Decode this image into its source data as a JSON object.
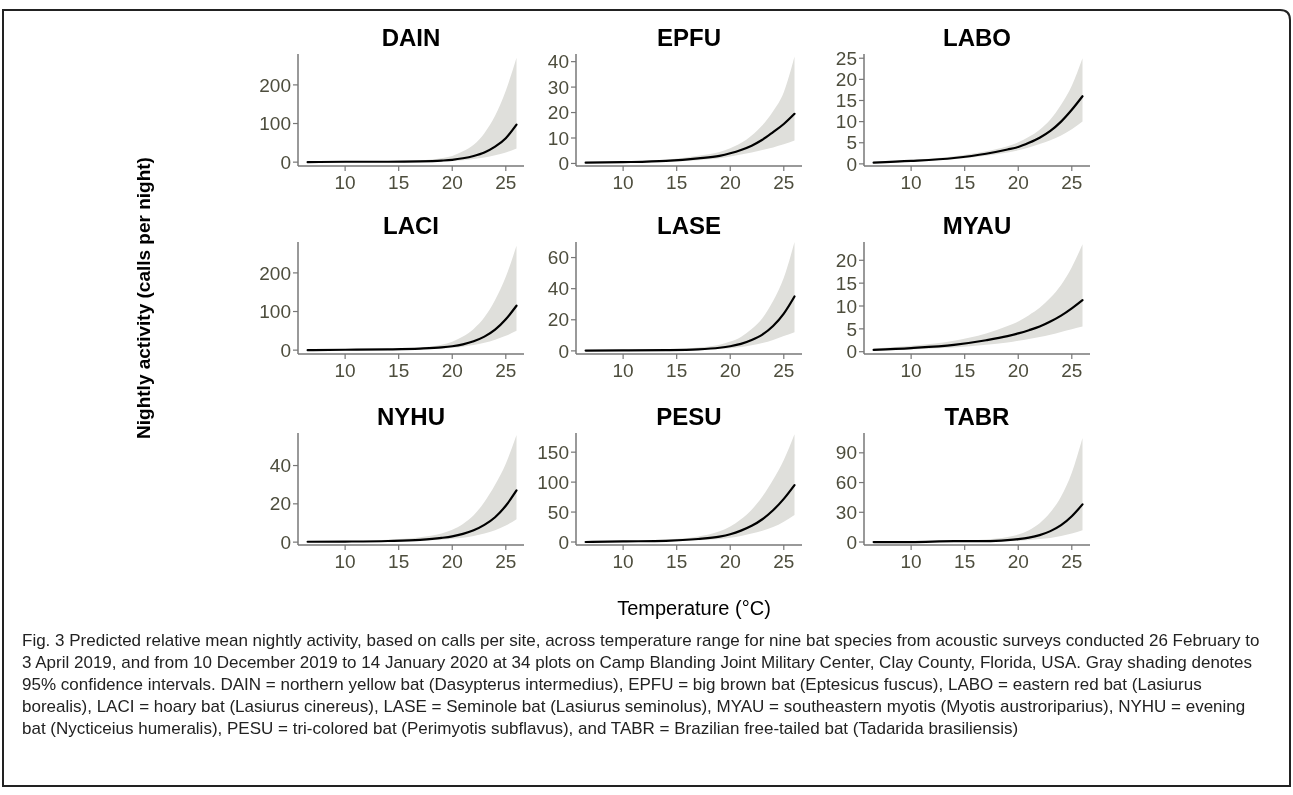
{
  "chart_data": [
    {
      "type": "line",
      "title": "DAIN",
      "x": [
        6.5,
        10,
        14,
        17,
        19,
        20,
        21,
        22,
        23,
        24,
        25,
        26
      ],
      "xlim": [
        5.6,
        26.7
      ],
      "xticks": [
        10,
        15,
        20,
        25
      ],
      "ylim": [
        -10,
        280
      ],
      "yticks": [
        0,
        100,
        200
      ],
      "grid": false,
      "series": [
        {
          "color": "#000000",
          "values": [
            0,
            1,
            1,
            2,
            4,
            6,
            10,
            16,
            25,
            40,
            62,
            97
          ],
          "lower": [
            0,
            0,
            0,
            1,
            2,
            3,
            5,
            8,
            12,
            18,
            25,
            35
          ],
          "upper": [
            1,
            2,
            3,
            5,
            10,
            16,
            28,
            45,
            75,
            120,
            185,
            270
          ]
        }
      ]
    },
    {
      "type": "line",
      "title": "EPFU",
      "x": [
        6.5,
        10,
        14,
        17,
        19,
        20,
        21,
        22,
        23,
        24,
        25,
        26
      ],
      "xlim": [
        5.6,
        26.7
      ],
      "xticks": [
        10,
        15,
        20,
        25
      ],
      "ylim": [
        -1,
        43
      ],
      "yticks": [
        0,
        10,
        20,
        30,
        40
      ],
      "grid": false,
      "series": [
        {
          "color": "#000000",
          "values": [
            0.3,
            0.5,
            1,
            2,
            3,
            4,
            5.3,
            7,
            9.3,
            12.3,
            15.5,
            19.5
          ],
          "lower": [
            0.2,
            0.3,
            0.7,
            1.3,
            2,
            2.7,
            3.5,
            4.3,
            5.3,
            6.3,
            7.5,
            9
          ],
          "upper": [
            0.5,
            0.8,
            1.5,
            3,
            4.5,
            6,
            8,
            11,
            15,
            20.5,
            28,
            42
          ]
        }
      ]
    },
    {
      "type": "line",
      "title": "LABO",
      "x": [
        6.5,
        10,
        14,
        17,
        19,
        20,
        21,
        22,
        23,
        24,
        25,
        26
      ],
      "xlim": [
        5.6,
        26.7
      ],
      "xticks": [
        10,
        15,
        20,
        25
      ],
      "ylim": [
        -0.5,
        26
      ],
      "yticks": [
        0,
        5,
        10,
        15,
        20,
        25
      ],
      "grid": false,
      "series": [
        {
          "color": "#000000",
          "values": [
            0.3,
            0.7,
            1.4,
            2.4,
            3.4,
            4,
            5,
            6.2,
            7.8,
            10,
            12.8,
            16
          ],
          "lower": [
            0.2,
            0.5,
            1.1,
            1.9,
            2.7,
            3.2,
            3.9,
            4.7,
            5.6,
            6.7,
            8.2,
            10
          ],
          "upper": [
            0.5,
            0.9,
            1.8,
            3,
            4.2,
            5.1,
            6.4,
            8.1,
            10.5,
            14,
            18.5,
            25
          ]
        }
      ]
    },
    {
      "type": "line",
      "title": "LACI",
      "ylabel": "Nightly activity (calls per night)",
      "x": [
        6.5,
        10,
        14,
        17,
        19,
        20,
        21,
        22,
        23,
        24,
        25,
        26
      ],
      "xlim": [
        5.6,
        26.7
      ],
      "xticks": [
        10,
        15,
        20,
        25
      ],
      "ylim": [
        -10,
        280
      ],
      "yticks": [
        0,
        100,
        200
      ],
      "grid": false,
      "series": [
        {
          "color": "#000000",
          "values": [
            0,
            1,
            2,
            4,
            7,
            10,
            15,
            23,
            35,
            53,
            80,
            115
          ],
          "lower": [
            0,
            0,
            1,
            2,
            4,
            6,
            9,
            13,
            19,
            27,
            37,
            50
          ],
          "upper": [
            1,
            2,
            3,
            7,
            14,
            22,
            35,
            55,
            85,
            130,
            190,
            270
          ]
        }
      ]
    },
    {
      "type": "line",
      "title": "LASE",
      "x": [
        6.5,
        10,
        14,
        17,
        19,
        20,
        21,
        22,
        23,
        24,
        25,
        26
      ],
      "xlim": [
        5.6,
        26.7
      ],
      "xticks": [
        10,
        15,
        20,
        25
      ],
      "ylim": [
        -2,
        70
      ],
      "yticks": [
        0,
        20,
        40,
        60
      ],
      "grid": false,
      "series": [
        {
          "color": "#000000",
          "values": [
            0.2,
            0.3,
            0.5,
            1,
            2,
            3,
            4.5,
            7,
            10.5,
            16,
            24,
            35
          ],
          "lower": [
            0.1,
            0.2,
            0.3,
            0.6,
            1.2,
            1.7,
            2.5,
            3.6,
            5,
            7,
            9.5,
            12
          ],
          "upper": [
            0.4,
            0.6,
            1,
            2.2,
            4,
            6,
            9,
            14,
            21,
            32,
            47,
            70
          ]
        }
      ]
    },
    {
      "type": "line",
      "title": "MYAU",
      "x": [
        6.5,
        10,
        14,
        17,
        19,
        20,
        21,
        22,
        23,
        24,
        25,
        26
      ],
      "xlim": [
        5.6,
        26.7
      ],
      "xticks": [
        10,
        15,
        20,
        25
      ],
      "ylim": [
        -0.5,
        24
      ],
      "yticks": [
        0,
        5,
        10,
        15,
        20
      ],
      "grid": false,
      "series": [
        {
          "color": "#000000",
          "values": [
            0.4,
            0.8,
            1.5,
            2.5,
            3.4,
            4,
            4.7,
            5.5,
            6.6,
            7.9,
            9.5,
            11.3
          ],
          "lower": [
            0.2,
            0.5,
            0.9,
            1.5,
            2,
            2.4,
            2.8,
            3.2,
            3.7,
            4.3,
            4.9,
            5.5
          ],
          "upper": [
            0.7,
            1.3,
            2.4,
            4,
            5.6,
            6.6,
            8,
            9.6,
            11.8,
            14.6,
            18.5,
            23.5
          ]
        }
      ]
    },
    {
      "type": "line",
      "title": "NYHU",
      "x": [
        6.5,
        10,
        14,
        17,
        19,
        20,
        21,
        22,
        23,
        24,
        25,
        26
      ],
      "xlim": [
        5.6,
        26.7
      ],
      "xticks": [
        10,
        15,
        20,
        25
      ],
      "ylim": [
        -1.5,
        57
      ],
      "yticks": [
        0,
        20,
        40
      ],
      "grid": false,
      "series": [
        {
          "color": "#000000",
          "values": [
            0.2,
            0.3,
            0.6,
            1.2,
            2.2,
            3,
            4.3,
            6.2,
            9,
            13,
            19,
            27
          ],
          "lower": [
            0.1,
            0.2,
            0.4,
            0.7,
            1.2,
            1.7,
            2.3,
            3.2,
            4.5,
            6.2,
            8.7,
            12
          ],
          "upper": [
            0.4,
            0.6,
            1.2,
            2.5,
            4.5,
            6.5,
            9.5,
            14,
            21,
            30,
            41,
            56
          ]
        }
      ]
    },
    {
      "type": "line",
      "title": "PESU",
      "xlabel": "Temperature (°C)",
      "x": [
        6.5,
        10,
        14,
        17,
        19,
        20,
        21,
        22,
        23,
        24,
        25,
        26
      ],
      "xlim": [
        5.6,
        26.7
      ],
      "xticks": [
        10,
        15,
        20,
        25
      ],
      "ylim": [
        -5,
        182
      ],
      "yticks": [
        0,
        50,
        100,
        150
      ],
      "grid": false,
      "series": [
        {
          "color": "#000000",
          "values": [
            0,
            1,
            2,
            5,
            9,
            13,
            19,
            27,
            38,
            53,
            72,
            95
          ],
          "lower": [
            0,
            1,
            1,
            3,
            5,
            7,
            10,
            14,
            19,
            25,
            34,
            45
          ],
          "upper": [
            1,
            2,
            4,
            9,
            18,
            26,
            38,
            54,
            76,
            104,
            137,
            180
          ]
        }
      ]
    },
    {
      "type": "line",
      "title": "TABR",
      "x": [
        6.5,
        10,
        14,
        17,
        19,
        20,
        21,
        22,
        23,
        24,
        25,
        26
      ],
      "xlim": [
        5.6,
        26.7
      ],
      "xticks": [
        10,
        15,
        20,
        25
      ],
      "ylim": [
        -3,
        110
      ],
      "yticks": [
        0,
        30,
        60,
        90
      ],
      "grid": false,
      "annotations": [
        "Fig. 3 Predicted relative mean nightly activity, based on calls per site, across temperature range for nine bat species from acoustic surveys conducted 26 February to 3 April 2019, and from 10 December 2019 to 14 January 2020 at 34 plots on Camp Blanding Joint Military Center, Clay County, Florida, USA. Gray shading denotes 95% confidence intervals. DAIN = northern yellow bat (Dasypterus intermedius), EPFU = big brown bat (Eptesicus fuscus), LABO = eastern red bat (Lasiurus borealis), LACI = hoary bat (Lasiurus cinereus), LASE = Seminole bat (Lasiurus seminolus), MYAU = southeastern myotis (Myotis austroriparius), NYHU = evening bat (Nycticeius humeralis), PESU = tri-colored bat (Perimyotis subflavus), and TABR = Brazilian free-tailed bat (Tadarida brasiliensis)"
      ],
      "series": [
        {
          "color": "#000000",
          "values": [
            0,
            0,
            1,
            1,
            2,
            3,
            4.5,
            7,
            11,
            17,
            26,
            38
          ],
          "lower": [
            0,
            0,
            0,
            0,
            1,
            1,
            2,
            3,
            4,
            6,
            8.5,
            12
          ],
          "upper": [
            0,
            1,
            1,
            2.5,
            5,
            7.5,
            12,
            19,
            30,
            46,
            70,
            105
          ]
        }
      ]
    }
  ]
}
